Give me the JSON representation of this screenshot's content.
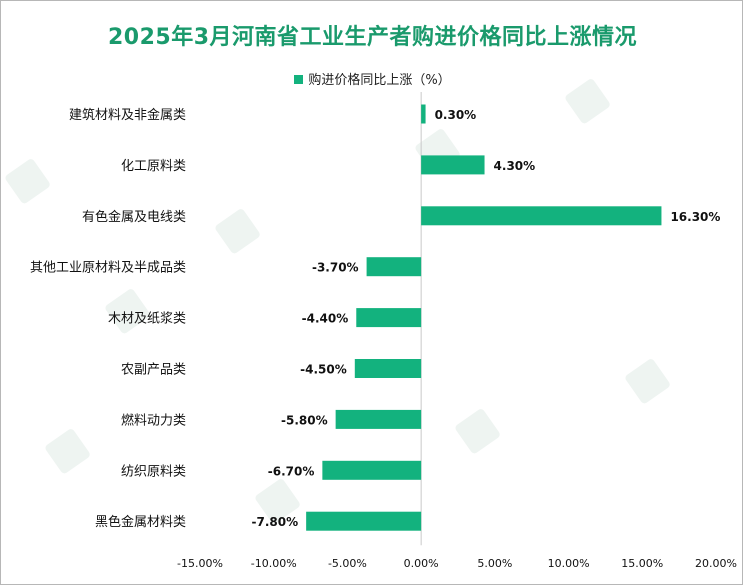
{
  "chart_data": {
    "type": "bar",
    "orientation": "horizontal",
    "title": "2025年3月河南省工业生产者购进价格同比上涨情况",
    "legend": "购进价格同比上涨（%）",
    "categories": [
      "建筑材料及非金属类",
      "化工原料类",
      "有色金属及电线类",
      "其他工业原材料及半成品类",
      "木材及纸浆类",
      "农副产品类",
      "燃料动力类",
      "纺织原料类",
      "黑色金属材料类"
    ],
    "values": [
      0.3,
      4.3,
      16.3,
      -3.7,
      -4.4,
      -4.5,
      -5.8,
      -6.7,
      -7.8
    ],
    "value_labels": [
      "0.30%",
      "4.30%",
      "16.30%",
      "-3.70%",
      "-4.40%",
      "-4.50%",
      "-5.80%",
      "-6.70%",
      "-7.80%"
    ],
    "xlim": [
      -15,
      20
    ],
    "xticks": [
      -15,
      -10,
      -5,
      0,
      5,
      10,
      15,
      20
    ],
    "xtick_labels": [
      "-15.00%",
      "-10.00%",
      "-5.00%",
      "0.00%",
      "5.00%",
      "10.00%",
      "15.00%",
      "20.00%"
    ],
    "bar_color": "#13b27e",
    "title_color": "#1a9a6c"
  }
}
